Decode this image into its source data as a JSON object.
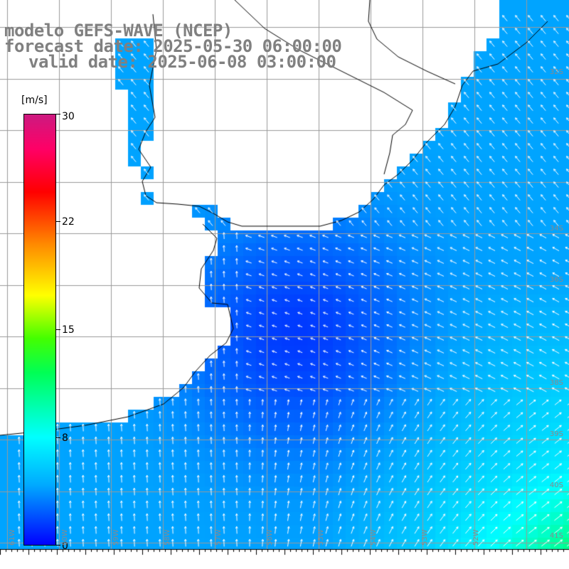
{
  "title": {
    "line1": "modelo GEFS-WAVE (NCEP)",
    "line2": "forecast date: 2025-05-30 06:00:00",
    "line3": "valid date: 2025-06-08 03:00:00"
  },
  "colorbar": {
    "unit": "[m/s]",
    "ticks": [
      "30",
      "22",
      "15",
      "8",
      "0"
    ],
    "min": 0,
    "max": 30,
    "colors": [
      "#0000ff",
      "#00aaff",
      "#00ffff",
      "#00ff55",
      "#ffff00",
      "#ff8800",
      "#ff0000",
      "#cc1a80"
    ]
  },
  "map": {
    "variable": "wind speed and direction",
    "land_color": "#ffffff",
    "grid_color": "#9a9a9a",
    "coast_color": "#000000",
    "arrow_color": "#ffffff",
    "lat_labels": [
      "32S",
      "34S",
      "36S",
      "38S",
      "39S",
      "40S",
      "41S"
    ],
    "lon_labels": [
      "61W",
      "60W",
      "59W",
      "58W",
      "57W",
      "56W",
      "55W",
      "54W",
      "53W",
      "52W"
    ]
  }
}
